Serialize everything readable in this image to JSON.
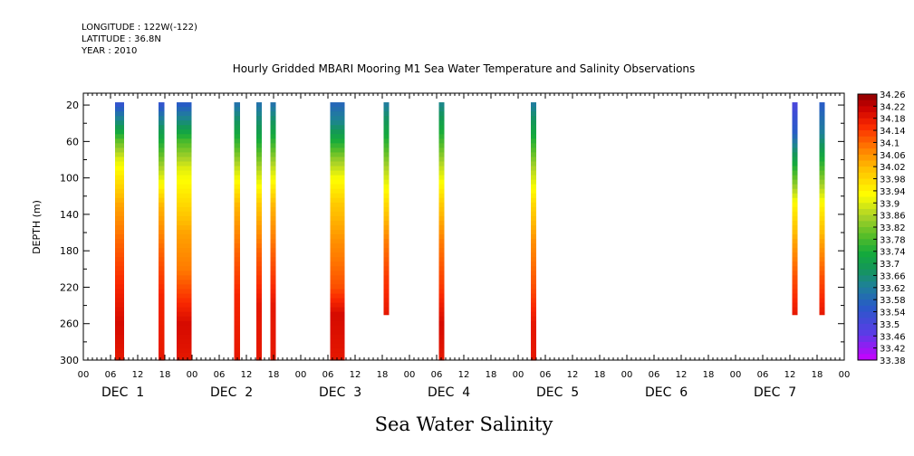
{
  "header": {
    "longitude": "LONGITUDE : 122W(-122)",
    "latitude": "LATITUDE : 36.8N",
    "year": "YEAR : 2010"
  },
  "colors": {
    "background": "#ffffff",
    "axis": "#000000",
    "palette_low": "#c800ff",
    "palette_high": "#8b0000"
  },
  "chart_data": {
    "type": "heatmap",
    "title": "Hourly Gridded MBARI Mooring M1 Sea Water Temperature and Salinity Observations",
    "xlabel": "Sea Water Salinity",
    "ylabel": "DEPTH (m)",
    "y_axis": {
      "range": [
        0,
        300
      ],
      "inverted": true,
      "tick_values": [
        20,
        60,
        100,
        140,
        180,
        220,
        260,
        300
      ],
      "tick_labels": [
        "20",
        "60",
        "100",
        "140",
        "180",
        "220",
        "260",
        "300"
      ]
    },
    "x_axis": {
      "range_hours": [
        0,
        168
      ],
      "hour_tick_labels": [
        "00",
        "06",
        "12",
        "18",
        "00",
        "06",
        "12",
        "18",
        "00",
        "06",
        "12",
        "18",
        "00",
        "06",
        "12",
        "18",
        "00",
        "06",
        "12",
        "18",
        "00",
        "06",
        "12",
        "18",
        "00",
        "06",
        "12",
        "18",
        "00"
      ],
      "day_labels": [
        "DEC  1",
        "DEC  2",
        "DEC  3",
        "DEC  4",
        "DEC  5",
        "DEC  6",
        "DEC  7"
      ]
    },
    "colorbar": {
      "min": 33.38,
      "max": 34.26,
      "labels": [
        "34.26",
        "34.22",
        "34.18",
        "34.14",
        "34.1",
        "34.06",
        "34.02",
        "33.98",
        "33.94",
        "33.9",
        "33.86",
        "33.82",
        "33.78",
        "33.74",
        "33.7",
        "33.66",
        "33.62",
        "33.58",
        "33.54",
        "33.5",
        "33.46",
        "33.42",
        "33.38"
      ]
    },
    "profiles": [
      {
        "day": "DEC 1",
        "hour_start": 7,
        "hour_end": 9,
        "depth_start": 20,
        "depth_end": 300,
        "profile": [
          [
            20,
            33.54
          ],
          [
            40,
            33.66
          ],
          [
            60,
            33.8
          ],
          [
            80,
            33.9
          ],
          [
            100,
            33.96
          ],
          [
            130,
            34.04
          ],
          [
            170,
            34.1
          ],
          [
            220,
            34.16
          ],
          [
            260,
            34.2
          ],
          [
            300,
            34.18
          ]
        ]
      },
      {
        "day": "DEC 1",
        "hour_start": 16.6,
        "hour_end": 17.9,
        "depth_start": 20,
        "depth_end": 300,
        "profile": [
          [
            20,
            33.54
          ],
          [
            50,
            33.7
          ],
          [
            90,
            33.86
          ],
          [
            130,
            34.02
          ],
          [
            180,
            34.1
          ],
          [
            230,
            34.16
          ],
          [
            300,
            34.18
          ]
        ]
      },
      {
        "day": "DEC 1",
        "hour_start": 20.6,
        "hour_end": 23.9,
        "depth_start": 20,
        "depth_end": 300,
        "profile": [
          [
            20,
            33.56
          ],
          [
            40,
            33.66
          ],
          [
            60,
            33.78
          ],
          [
            90,
            33.9
          ],
          [
            120,
            33.96
          ],
          [
            160,
            34.04
          ],
          [
            200,
            34.08
          ],
          [
            240,
            34.16
          ],
          [
            260,
            34.2
          ],
          [
            300,
            34.18
          ]
        ]
      },
      {
        "day": "DEC 2",
        "hour_start": 9.3,
        "hour_end": 10.6,
        "depth_start": 20,
        "depth_end": 300,
        "profile": [
          [
            20,
            33.6
          ],
          [
            50,
            33.72
          ],
          [
            90,
            33.88
          ],
          [
            130,
            34.02
          ],
          [
            180,
            34.1
          ],
          [
            230,
            34.16
          ],
          [
            300,
            34.18
          ]
        ]
      },
      {
        "day": "DEC 2",
        "hour_start": 14.2,
        "hour_end": 15.4,
        "depth_start": 20,
        "depth_end": 300,
        "profile": [
          [
            20,
            33.6
          ],
          [
            50,
            33.7
          ],
          [
            90,
            33.86
          ],
          [
            130,
            34.0
          ],
          [
            180,
            34.1
          ],
          [
            240,
            34.18
          ],
          [
            300,
            34.18
          ]
        ]
      },
      {
        "day": "DEC 2",
        "hour_start": 17.3,
        "hour_end": 18.5,
        "depth_start": 20,
        "depth_end": 300,
        "profile": [
          [
            20,
            33.6
          ],
          [
            50,
            33.72
          ],
          [
            90,
            33.88
          ],
          [
            130,
            34.02
          ],
          [
            180,
            34.1
          ],
          [
            240,
            34.18
          ],
          [
            300,
            34.18
          ]
        ]
      },
      {
        "day": "DEC 3",
        "hour_start": 6.5,
        "hour_end": 9.7,
        "depth_start": 20,
        "depth_end": 300,
        "profile": [
          [
            20,
            33.58
          ],
          [
            40,
            33.64
          ],
          [
            60,
            33.74
          ],
          [
            80,
            33.84
          ],
          [
            100,
            33.92
          ],
          [
            130,
            34.0
          ],
          [
            170,
            34.06
          ],
          [
            220,
            34.12
          ],
          [
            250,
            34.2
          ],
          [
            300,
            34.18
          ]
        ]
      },
      {
        "day": "DEC 3",
        "hour_start": 18.3,
        "hour_end": 19.5,
        "depth_start": 20,
        "depth_end": 250,
        "profile": [
          [
            20,
            33.62
          ],
          [
            50,
            33.72
          ],
          [
            90,
            33.86
          ],
          [
            130,
            33.98
          ],
          [
            170,
            34.08
          ],
          [
            210,
            34.14
          ],
          [
            250,
            34.18
          ]
        ]
      },
      {
        "day": "DEC 4",
        "hour_start": 6.5,
        "hour_end": 7.7,
        "depth_start": 20,
        "depth_end": 300,
        "profile": [
          [
            20,
            33.64
          ],
          [
            50,
            33.74
          ],
          [
            90,
            33.88
          ],
          [
            130,
            34.0
          ],
          [
            170,
            34.08
          ],
          [
            220,
            34.14
          ],
          [
            260,
            34.2
          ],
          [
            300,
            34.18
          ]
        ]
      },
      {
        "day": "DEC 5",
        "hour_start": 2.8,
        "hour_end": 4.0,
        "depth_start": 20,
        "depth_end": 300,
        "profile": [
          [
            20,
            33.62
          ],
          [
            50,
            33.72
          ],
          [
            90,
            33.86
          ],
          [
            130,
            33.98
          ],
          [
            170,
            34.06
          ],
          [
            220,
            34.12
          ],
          [
            260,
            34.18
          ],
          [
            300,
            34.18
          ]
        ]
      },
      {
        "day": "DEC 7",
        "hour_start": 12.5,
        "hour_end": 13.7,
        "depth_start": 20,
        "depth_end": 250,
        "profile": [
          [
            20,
            33.5
          ],
          [
            50,
            33.56
          ],
          [
            70,
            33.66
          ],
          [
            100,
            33.8
          ],
          [
            130,
            33.94
          ],
          [
            170,
            34.04
          ],
          [
            210,
            34.12
          ],
          [
            250,
            34.18
          ]
        ]
      },
      {
        "day": "DEC 7",
        "hour_start": 18.5,
        "hour_end": 19.7,
        "depth_start": 20,
        "depth_end": 250,
        "profile": [
          [
            20,
            33.56
          ],
          [
            50,
            33.62
          ],
          [
            70,
            33.7
          ],
          [
            100,
            33.82
          ],
          [
            130,
            33.94
          ],
          [
            170,
            34.04
          ],
          [
            210,
            34.12
          ],
          [
            250,
            34.18
          ]
        ]
      }
    ]
  }
}
